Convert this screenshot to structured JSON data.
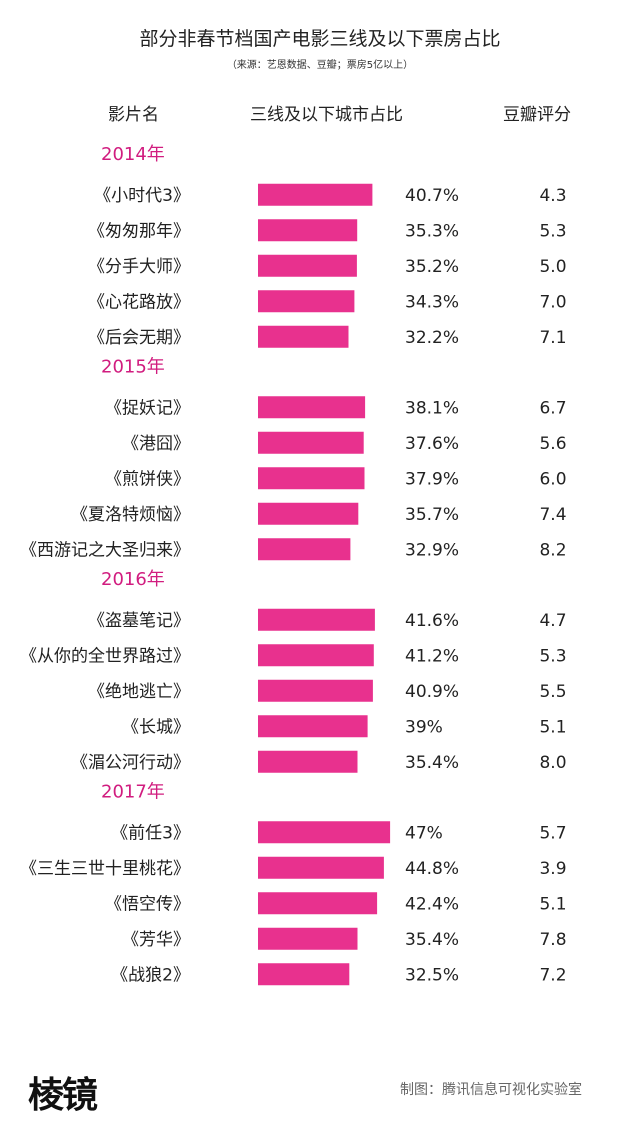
{
  "chart_data": {
    "type": "bar",
    "title": "部分非春节档国产电影三线及以下票房占比",
    "subtitle": "（来源：艺恩数据、豆瓣；票房5亿以上）",
    "columns": [
      "影片名",
      "三线及以下城市占比",
      "豆瓣评分"
    ],
    "xlim": [
      0,
      100
    ],
    "bar_color": "#e8318e",
    "year_color": "#d11c7f",
    "groups": [
      {
        "label": "2014年",
        "rows": [
          {
            "name": "《小时代3》",
            "value": 40.7,
            "value_label": "40.7%",
            "score": "4.3"
          },
          {
            "name": "《匆匆那年》",
            "value": 35.3,
            "value_label": "35.3%",
            "score": "5.3"
          },
          {
            "name": "《分手大师》",
            "value": 35.2,
            "value_label": "35.2%",
            "score": "5.0"
          },
          {
            "name": "《心花路放》",
            "value": 34.3,
            "value_label": "34.3%",
            "score": "7.0"
          },
          {
            "name": "《后会无期》",
            "value": 32.2,
            "value_label": "32.2%",
            "score": "7.1"
          }
        ]
      },
      {
        "label": "2015年",
        "rows": [
          {
            "name": "《捉妖记》",
            "value": 38.1,
            "value_label": "38.1%",
            "score": "6.7"
          },
          {
            "name": "《港囧》",
            "value": 37.6,
            "value_label": "37.6%",
            "score": "5.6"
          },
          {
            "name": "《煎饼侠》",
            "value": 37.9,
            "value_label": "37.9%",
            "score": "6.0"
          },
          {
            "name": "《夏洛特烦恼》",
            "value": 35.7,
            "value_label": "35.7%",
            "score": "7.4"
          },
          {
            "name": "《西游记之大圣归来》",
            "value": 32.9,
            "value_label": "32.9%",
            "score": "8.2"
          }
        ]
      },
      {
        "label": "2016年",
        "rows": [
          {
            "name": "《盗墓笔记》",
            "value": 41.6,
            "value_label": "41.6%",
            "score": "4.7"
          },
          {
            "name": "《从你的全世界路过》",
            "value": 41.2,
            "value_label": "41.2%",
            "score": "5.3"
          },
          {
            "name": "《绝地逃亡》",
            "value": 40.9,
            "value_label": "40.9%",
            "score": "5.5"
          },
          {
            "name": "《长城》",
            "value": 39,
            "value_label": "39%",
            "score": "5.1"
          },
          {
            "name": "《湄公河行动》",
            "value": 35.4,
            "value_label": "35.4%",
            "score": "8.0"
          }
        ]
      },
      {
        "label": "2017年",
        "rows": [
          {
            "name": "《前任3》",
            "value": 47,
            "value_label": "47%",
            "score": "5.7"
          },
          {
            "name": "《三生三世十里桃花》",
            "value": 44.8,
            "value_label": "44.8%",
            "score": "3.9"
          },
          {
            "name": "《悟空传》",
            "value": 42.4,
            "value_label": "42.4%",
            "score": "5.1"
          },
          {
            "name": "《芳华》",
            "value": 35.4,
            "value_label": "35.4%",
            "score": "7.8"
          },
          {
            "name": "《战狼2》",
            "value": 32.5,
            "value_label": "32.5%",
            "score": "7.2"
          }
        ]
      }
    ]
  },
  "footer": {
    "logo": "棱镜",
    "credit": "制图：腾讯信息可视化实验室"
  }
}
